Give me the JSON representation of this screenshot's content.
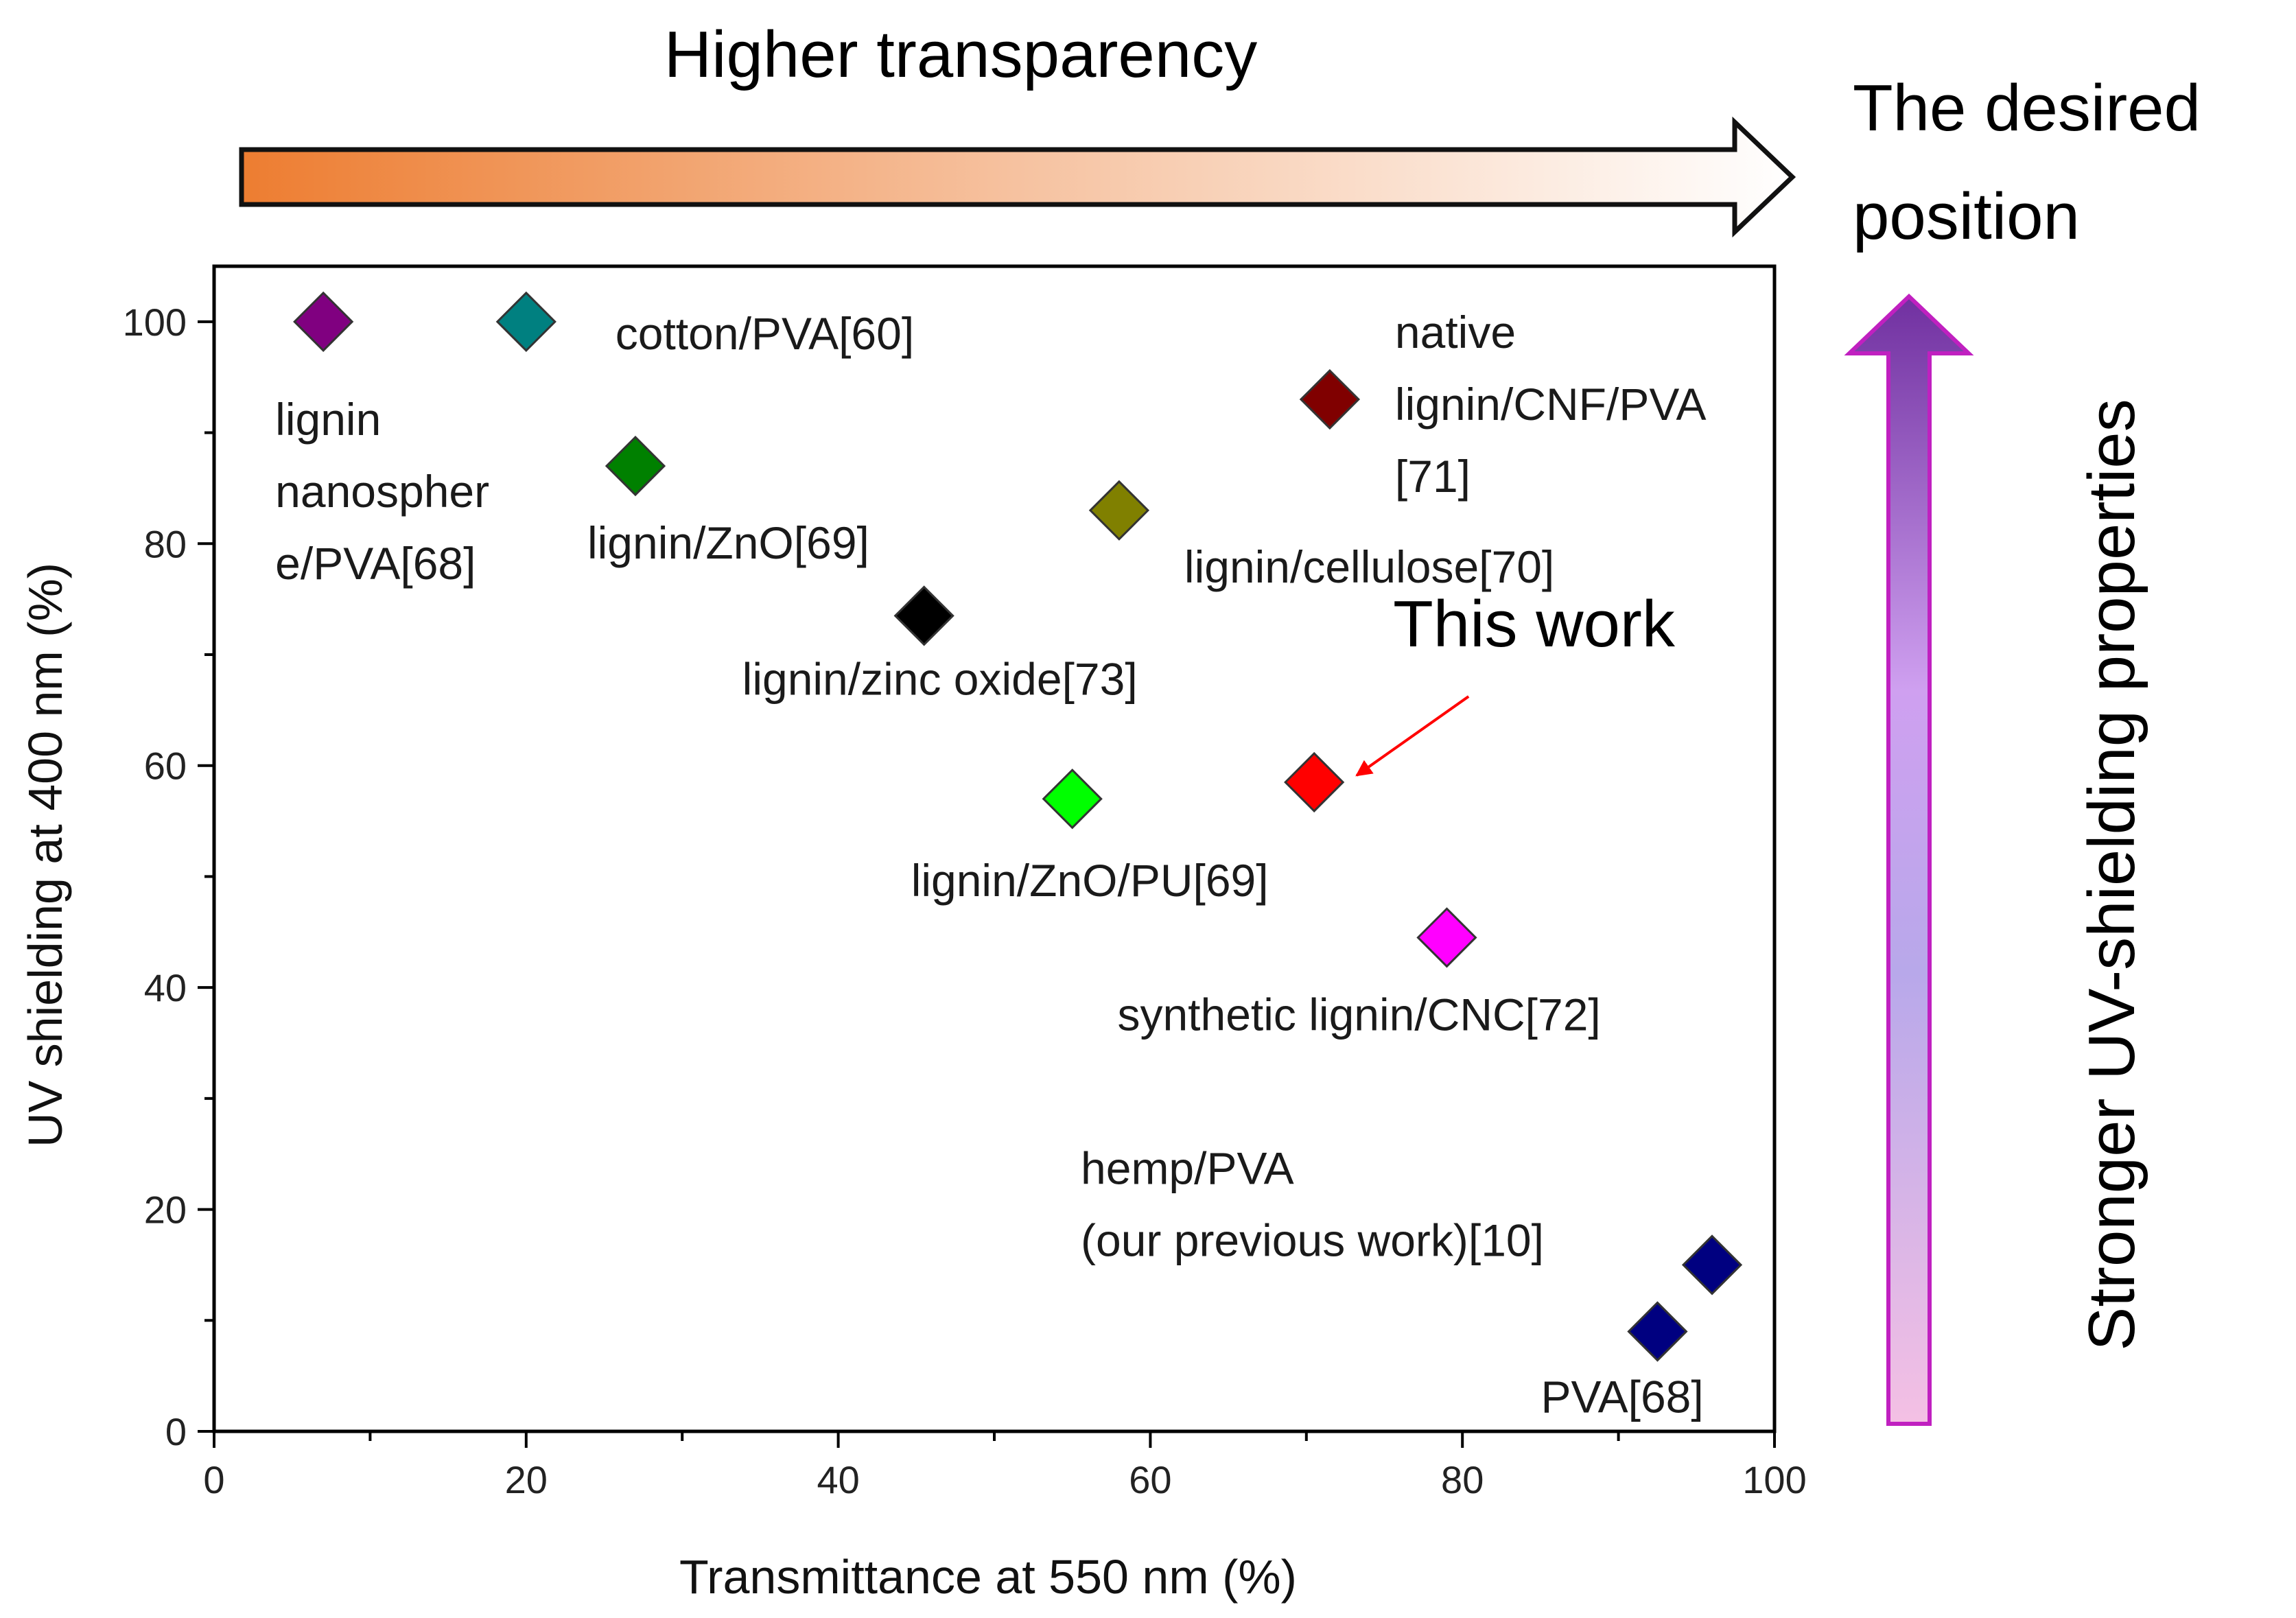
{
  "chart_data": {
    "type": "scatter",
    "xlabel": "Transmittance at 550 nm (%)",
    "ylabel": "UV shielding at 400 nm (%)",
    "xlim": [
      0,
      100
    ],
    "ylim": [
      0,
      105
    ],
    "xticks": [
      0,
      20,
      40,
      60,
      80,
      100
    ],
    "yticks": [
      0,
      20,
      40,
      60,
      80,
      100
    ],
    "marker": "diamond",
    "points": [
      {
        "name": "lignin nanosphere/PVA[68]",
        "label_lines": [
          "lignin",
          "nanospher",
          "e/PVA[68]"
        ],
        "x": 7,
        "y": 100,
        "color": "#800080"
      },
      {
        "name": "cotton/PVA[60]",
        "label_lines": [
          "cotton/PVA[60]"
        ],
        "x": 20,
        "y": 100,
        "color": "#008080"
      },
      {
        "name": "lignin/ZnO[69]",
        "label_lines": [
          "lignin/ZnO[69]"
        ],
        "x": 27,
        "y": 87,
        "color": "#008000"
      },
      {
        "name": "native lignin/CNF/PVA[71]",
        "label_lines": [
          "native",
          "lignin/CNF/PVA",
          "[71]"
        ],
        "x": 71.5,
        "y": 93,
        "color": "#800000"
      },
      {
        "name": "lignin/cellulose[70]",
        "label_lines": [
          "lignin/cellulose[70]"
        ],
        "x": 58,
        "y": 83,
        "color": "#808000"
      },
      {
        "name": "lignin/zinc oxide[73]",
        "label_lines": [
          "lignin/zinc oxide[73]"
        ],
        "x": 45.5,
        "y": 73.5,
        "color": "#000000"
      },
      {
        "name": "lignin/ZnO/PU[69]",
        "label_lines": [
          "lignin/ZnO/PU[69]"
        ],
        "x": 55,
        "y": 57,
        "color": "#00ff00"
      },
      {
        "name": "This work",
        "label_lines": [
          "This work"
        ],
        "x": 70.5,
        "y": 58.5,
        "color": "#ff0000"
      },
      {
        "name": "synthetic lignin/CNC[72]",
        "label_lines": [
          "synthetic lignin/CNC[72]"
        ],
        "x": 79,
        "y": 44.5,
        "color": "#ff00ff"
      },
      {
        "name": "hemp/PVA (our previous work)[10]",
        "label_lines": [
          "hemp/PVA",
          "(our previous work)[10]"
        ],
        "x": 96,
        "y": 15,
        "color": "#000080"
      },
      {
        "name": "PVA[68]",
        "label_lines": [
          "PVA[68]"
        ],
        "x": 92.5,
        "y": 9,
        "color": "#000080"
      }
    ],
    "annotations": {
      "top_arrow": "Higher transparency",
      "side_arrow": "Stronger UV-shielding properties",
      "desired_position": [
        "The desired",
        "position"
      ],
      "highlight": "This work"
    }
  }
}
